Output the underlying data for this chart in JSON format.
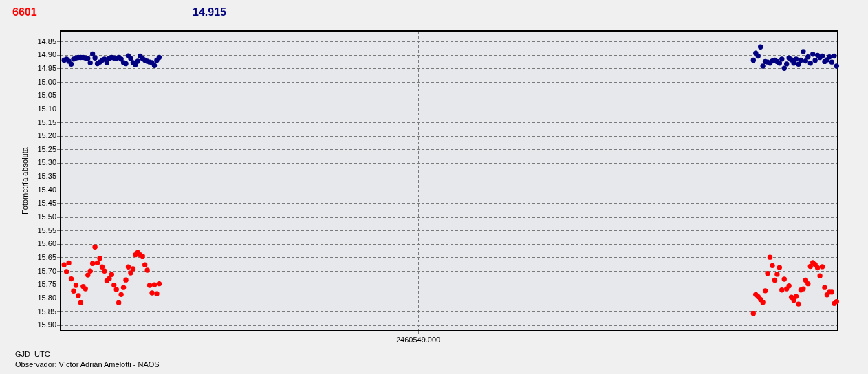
{
  "chart_data": {
    "type": "scatter",
    "legend": "top left",
    "marker": "circle",
    "grid": true,
    "ylabel": "Fotometría absoluta",
    "xlabel": "GJD_UTC",
    "annotations": [
      "Observador: Víctor Adrián Amelotti - NAOS"
    ],
    "ylim": [
      15.92,
      14.81
    ],
    "yticks": [
      {
        "value": 14.85,
        "label": "14.85"
      },
      {
        "value": 14.9,
        "label": "14.90"
      },
      {
        "value": 14.95,
        "label": "14.95"
      },
      {
        "value": 15,
        "label": "15.00"
      },
      {
        "value": 15.05,
        "label": "15.05"
      },
      {
        "value": 15.1,
        "label": "15.10"
      },
      {
        "value": 15.15,
        "label": "15.15"
      },
      {
        "value": 15.2,
        "label": "15.20"
      },
      {
        "value": 15.25,
        "label": "15.25"
      },
      {
        "value": 15.3,
        "label": "15.30"
      },
      {
        "value": 15.35,
        "label": "15.35"
      },
      {
        "value": 15.4,
        "label": "15.40"
      },
      {
        "value": 15.45,
        "label": "15.45"
      },
      {
        "value": 15.5,
        "label": "15.50"
      },
      {
        "value": 15.55,
        "label": "15.55"
      },
      {
        "value": 15.6,
        "label": "15.60"
      },
      {
        "value": 15.65,
        "label": "15.65"
      },
      {
        "value": 15.7,
        "label": "15.70"
      },
      {
        "value": 15.75,
        "label": "15.75"
      },
      {
        "value": 15.8,
        "label": "15.80"
      },
      {
        "value": 15.85,
        "label": "15.85"
      },
      {
        "value": 15.9,
        "label": "15.90"
      }
    ],
    "categories": [
      null,
      null,
      null,
      null,
      null,
      null,
      null,
      null,
      null,
      null,
      null,
      null,
      null,
      null,
      null,
      null,
      null,
      null,
      null,
      null,
      null,
      null,
      null,
      null,
      null,
      null,
      null,
      null,
      null,
      null,
      null,
      null,
      null,
      null,
      null,
      null,
      null,
      null,
      null,
      null,
      null,
      null,
      null,
      null,
      null,
      null,
      null,
      null,
      null,
      null,
      null,
      null,
      null,
      null,
      null,
      null,
      null,
      null,
      null,
      null,
      null,
      null,
      null,
      null,
      null,
      null,
      null,
      null,
      null,
      null,
      null,
      null,
      null,
      null,
      null,
      null,
      null,
      null,
      null,
      null,
      null,
      null,
      null,
      null,
      null,
      null,
      null,
      null,
      null,
      null,
      null,
      null,
      null,
      null,
      null,
      null,
      null,
      null,
      null,
      null,
      null,
      null,
      null,
      null,
      null,
      null,
      null,
      null,
      null,
      null,
      null,
      null,
      null,
      null,
      null,
      null,
      null,
      null,
      null,
      null,
      null,
      null,
      null,
      null,
      null,
      null,
      null,
      null,
      null,
      null,
      null,
      null,
      null,
      null,
      null,
      null,
      null,
      null,
      null,
      null,
      null,
      null,
      null,
      null,
      null,
      null,
      null,
      null,
      null,
      null,
      "2460549.000",
      null,
      null,
      null,
      null,
      null,
      null,
      null,
      null,
      null,
      null,
      null,
      null,
      null,
      null,
      null,
      null,
      null,
      null,
      null,
      null,
      null,
      null,
      null,
      null,
      null,
      null,
      null,
      null,
      null,
      null,
      null,
      null,
      null,
      null,
      null,
      null,
      null,
      null,
      null,
      null,
      null,
      null,
      null,
      null,
      null,
      null,
      null,
      null,
      null,
      null,
      null,
      null,
      null,
      null,
      null,
      null,
      null,
      null,
      null,
      null,
      null,
      null,
      null,
      null,
      null,
      null,
      null,
      null,
      null,
      null,
      null,
      null,
      null,
      null,
      null,
      null,
      null,
      null,
      null,
      null,
      null,
      null,
      null,
      null,
      null,
      null,
      null,
      null,
      null,
      null,
      null,
      null,
      null,
      null,
      null,
      null,
      null,
      null,
      null,
      null,
      null,
      null,
      null,
      null,
      null,
      null,
      null,
      null,
      null,
      null,
      null,
      null,
      null,
      null,
      null,
      null,
      null,
      null,
      null,
      null,
      null,
      null,
      null,
      null,
      null,
      null,
      null,
      null,
      null,
      null,
      null,
      null,
      null,
      null,
      null,
      null,
      null,
      null,
      null,
      null,
      null,
      null,
      null,
      null,
      null,
      null,
      null,
      null,
      null,
      null,
      null,
      null,
      null,
      null,
      null,
      null,
      null,
      null,
      null,
      null,
      null,
      null,
      null,
      null,
      null,
      null,
      null,
      null,
      null,
      null,
      null,
      null,
      null,
      null,
      null,
      null
    ],
    "series": [
      {
        "name": "6601",
        "color": "#ff0000",
        "values": [
          null,
          15.676,
          15.701,
          15.669,
          15.728,
          15.773,
          15.752,
          15.79,
          15.816,
          15.756,
          15.765,
          15.714,
          15.699,
          15.671,
          15.61,
          15.669,
          15.652,
          15.684,
          15.699,
          15.735,
          15.727,
          15.712,
          15.751,
          15.767,
          15.816,
          15.786,
          15.76,
          15.732,
          15.684,
          15.706,
          15.691,
          15.639,
          15.63,
          15.639,
          15.644,
          15.676,
          15.696,
          15.752,
          15.78,
          15.75,
          15.783,
          15.746,
          null,
          null,
          null,
          null,
          null,
          null,
          null,
          null,
          null,
          null,
          null,
          null,
          null,
          null,
          null,
          null,
          null,
          null,
          null,
          null,
          null,
          null,
          null,
          null,
          null,
          null,
          null,
          null,
          null,
          null,
          null,
          null,
          null,
          null,
          null,
          null,
          null,
          null,
          null,
          null,
          null,
          null,
          null,
          null,
          null,
          null,
          null,
          null,
          null,
          null,
          null,
          null,
          null,
          null,
          null,
          null,
          null,
          null,
          null,
          null,
          null,
          null,
          null,
          null,
          null,
          null,
          null,
          null,
          null,
          null,
          null,
          null,
          null,
          null,
          null,
          null,
          null,
          null,
          null,
          null,
          null,
          null,
          null,
          null,
          null,
          null,
          null,
          null,
          null,
          null,
          null,
          null,
          null,
          null,
          null,
          null,
          null,
          null,
          null,
          null,
          null,
          null,
          null,
          null,
          null,
          null,
          null,
          null,
          null,
          null,
          null,
          null,
          null,
          null,
          null,
          null,
          null,
          null,
          null,
          null,
          null,
          null,
          null,
          null,
          null,
          null,
          null,
          null,
          null,
          null,
          null,
          null,
          null,
          null,
          null,
          null,
          null,
          null,
          null,
          null,
          null,
          null,
          null,
          null,
          null,
          null,
          null,
          null,
          null,
          null,
          null,
          null,
          null,
          null,
          null,
          null,
          null,
          null,
          null,
          null,
          null,
          null,
          null,
          null,
          null,
          null,
          null,
          null,
          null,
          null,
          null,
          null,
          null,
          null,
          null,
          null,
          null,
          null,
          null,
          null,
          null,
          null,
          null,
          null,
          null,
          null,
          null,
          null,
          null,
          null,
          null,
          null,
          null,
          null,
          null,
          null,
          null,
          null,
          null,
          null,
          null,
          null,
          null,
          null,
          null,
          null,
          null,
          null,
          null,
          null,
          null,
          null,
          null,
          null,
          null,
          null,
          null,
          null,
          null,
          null,
          null,
          null,
          null,
          null,
          null,
          null,
          null,
          null,
          null,
          null,
          null,
          null,
          null,
          null,
          null,
          null,
          null,
          null,
          null,
          null,
          null,
          null,
          null,
          null,
          null,
          null,
          null,
          null,
          null,
          15.856,
          15.786,
          15.794,
          15.804,
          15.815,
          15.772,
          15.708,
          15.648,
          15.679,
          15.733,
          15.711,
          15.686,
          15.769,
          15.729,
          15.765,
          15.754,
          15.796,
          15.807,
          15.793,
          15.821,
          15.769,
          15.765,
          15.733,
          15.746,
          15.682,
          15.668,
          15.675,
          15.687,
          15.717,
          15.683,
          15.76,
          15.787,
          15.777,
          15.777,
          15.819,
          15.812
        ]
      },
      {
        "name": "14.915",
        "color": "#000080",
        "values": [
          null,
          14.918,
          14.914,
          14.922,
          14.933,
          14.914,
          14.91,
          14.908,
          14.908,
          14.908,
          14.91,
          14.912,
          14.928,
          14.895,
          14.91,
          14.931,
          14.925,
          14.918,
          14.914,
          14.928,
          14.912,
          14.908,
          14.91,
          14.912,
          14.908,
          14.914,
          14.927,
          14.931,
          14.902,
          14.912,
          14.927,
          14.935,
          14.922,
          14.903,
          14.912,
          14.918,
          14.922,
          14.925,
          14.927,
          14.938,
          14.918,
          14.908,
          null,
          null,
          null,
          null,
          null,
          null,
          null,
          null,
          null,
          null,
          null,
          null,
          null,
          null,
          null,
          null,
          null,
          null,
          null,
          null,
          null,
          null,
          null,
          null,
          null,
          null,
          null,
          null,
          null,
          null,
          null,
          null,
          null,
          null,
          null,
          null,
          null,
          null,
          null,
          null,
          null,
          null,
          null,
          null,
          null,
          null,
          null,
          null,
          null,
          null,
          null,
          null,
          null,
          null,
          null,
          null,
          null,
          null,
          null,
          null,
          null,
          null,
          null,
          null,
          null,
          null,
          null,
          null,
          null,
          null,
          null,
          null,
          null,
          null,
          null,
          null,
          null,
          null,
          null,
          null,
          null,
          null,
          null,
          null,
          null,
          null,
          null,
          null,
          null,
          null,
          null,
          null,
          null,
          null,
          null,
          null,
          null,
          null,
          null,
          null,
          null,
          null,
          null,
          null,
          null,
          null,
          null,
          null,
          null,
          null,
          null,
          null,
          null,
          null,
          null,
          null,
          null,
          null,
          null,
          null,
          null,
          null,
          null,
          null,
          null,
          null,
          null,
          null,
          null,
          null,
          null,
          null,
          null,
          null,
          null,
          null,
          null,
          null,
          null,
          null,
          null,
          null,
          null,
          null,
          null,
          null,
          null,
          null,
          null,
          null,
          null,
          null,
          null,
          null,
          null,
          null,
          null,
          null,
          null,
          null,
          null,
          null,
          null,
          null,
          null,
          null,
          null,
          null,
          null,
          null,
          null,
          null,
          null,
          null,
          null,
          null,
          null,
          null,
          null,
          null,
          null,
          null,
          null,
          null,
          null,
          null,
          null,
          null,
          null,
          null,
          null,
          null,
          null,
          null,
          null,
          null,
          null,
          null,
          null,
          null,
          null,
          null,
          null,
          null,
          null,
          null,
          null,
          null,
          null,
          null,
          null,
          null,
          null,
          null,
          null,
          null,
          null,
          null,
          null,
          null,
          null,
          null,
          null,
          null,
          null,
          null,
          null,
          null,
          null,
          null,
          null,
          null,
          null,
          null,
          null,
          null,
          null,
          null,
          null,
          null,
          null,
          null,
          null,
          null,
          null,
          null,
          null,
          null,
          null,
          14.918,
          14.892,
          14.903,
          14.869,
          14.94,
          14.923,
          14.925,
          14.929,
          14.921,
          14.918,
          14.923,
          14.929,
          14.914,
          14.948,
          14.932,
          14.91,
          14.917,
          14.929,
          14.914,
          14.933,
          14.918,
          14.886,
          14.921,
          14.906,
          14.929,
          14.896,
          14.919,
          14.9,
          14.908,
          14.903,
          14.923,
          14.917,
          14.906,
          14.925,
          14.903,
          14.94
        ]
      }
    ]
  }
}
